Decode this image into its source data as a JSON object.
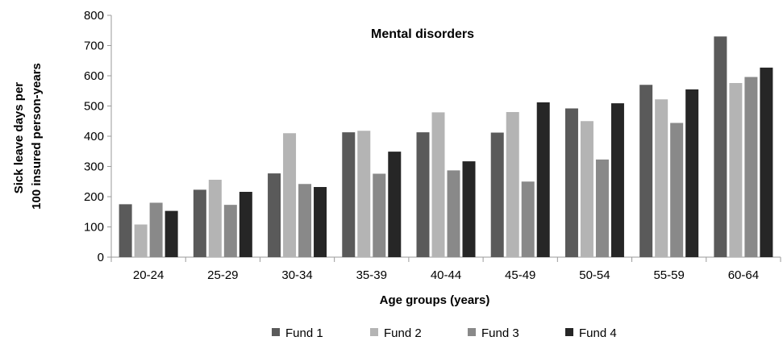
{
  "chart_data": {
    "type": "bar",
    "title": "Mental disorders",
    "xlabel": "Age groups (years)",
    "ylabel_lines": [
      "Sick leave days per",
      "100 insured person-years"
    ],
    "ylim": [
      0,
      800
    ],
    "yticks": [
      0,
      100,
      200,
      300,
      400,
      500,
      600,
      700,
      800
    ],
    "grid": false,
    "legend_position": "bottom",
    "categories": [
      "20-24",
      "25-29",
      "30-34",
      "35-39",
      "40-44",
      "45-49",
      "50-54",
      "55-59",
      "60-64"
    ],
    "series": [
      {
        "name": "Fund 1",
        "color": "#5a5a5a",
        "values": [
          175,
          223,
          277,
          413,
          413,
          412,
          492,
          570,
          730
        ]
      },
      {
        "name": "Fund 2",
        "color": "#b4b4b4",
        "values": [
          108,
          256,
          410,
          418,
          479,
          480,
          450,
          522,
          576
        ]
      },
      {
        "name": "Fund 3",
        "color": "#898989",
        "values": [
          180,
          173,
          242,
          276,
          287,
          250,
          323,
          444,
          596
        ]
      },
      {
        "name": "Fund 4",
        "color": "#262626",
        "values": [
          153,
          216,
          232,
          349,
          317,
          512,
          509,
          555,
          627
        ]
      }
    ]
  }
}
